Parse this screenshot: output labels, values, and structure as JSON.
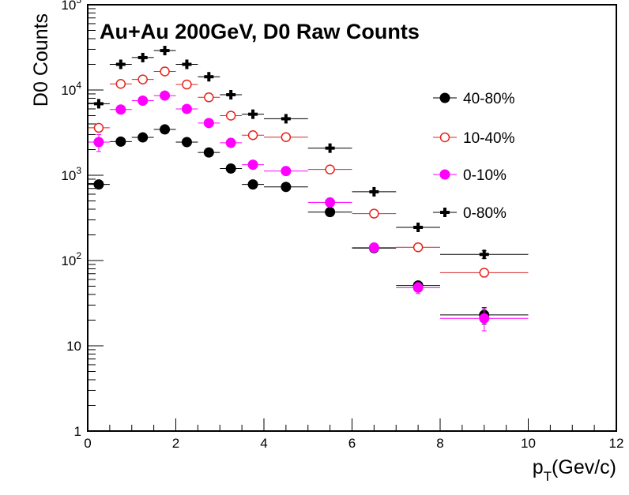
{
  "chart_data": {
    "type": "scatter",
    "title": "Au+Au 200GeV, D0 Raw Counts",
    "xlabel_main": "p",
    "xlabel_sub": "T",
    "xlabel_rest": "(Gev/c)",
    "ylabel": "D0 Counts",
    "xlim": [
      0,
      12
    ],
    "ylim": [
      1,
      100000
    ],
    "y_scale": "log",
    "grid": false,
    "legend_placement": "right",
    "x_ticks": [
      {
        "v": 0,
        "label": "0"
      },
      {
        "v": 2,
        "label": "2"
      },
      {
        "v": 4,
        "label": "4"
      },
      {
        "v": 6,
        "label": "6"
      },
      {
        "v": 8,
        "label": "8"
      },
      {
        "v": 10,
        "label": "10"
      },
      {
        "v": 12,
        "label": "12"
      }
    ],
    "y_ticks": [
      {
        "v": 1,
        "base": "1",
        "exp": ""
      },
      {
        "v": 10,
        "base": "10",
        "exp": ""
      },
      {
        "v": 100,
        "base": "10",
        "exp": "2"
      },
      {
        "v": 1000,
        "base": "10",
        "exp": "3"
      },
      {
        "v": 10000,
        "base": "10",
        "exp": "4"
      },
      {
        "v": 100000,
        "base": "10",
        "exp": "5"
      }
    ],
    "series": [
      {
        "name": "40-80%",
        "marker": "filled-circle",
        "color": "#000000",
        "line_color": "#000000",
        "points": [
          {
            "x": 0.25,
            "xerr": 0.25,
            "y": 780,
            "yerr": 80
          },
          {
            "x": 0.75,
            "xerr": 0.25,
            "y": 2480,
            "yerr": 0
          },
          {
            "x": 1.25,
            "xerr": 0.25,
            "y": 2780,
            "yerr": 0
          },
          {
            "x": 1.75,
            "xerr": 0.25,
            "y": 3450,
            "yerr": 0
          },
          {
            "x": 2.25,
            "xerr": 0.25,
            "y": 2450,
            "yerr": 0
          },
          {
            "x": 2.75,
            "xerr": 0.25,
            "y": 1850,
            "yerr": 0
          },
          {
            "x": 3.25,
            "xerr": 0.25,
            "y": 1200,
            "yerr": 0
          },
          {
            "x": 3.75,
            "xerr": 0.25,
            "y": 780,
            "yerr": 0
          },
          {
            "x": 4.5,
            "xerr": 0.5,
            "y": 730,
            "yerr": 0
          },
          {
            "x": 5.5,
            "xerr": 0.5,
            "y": 370,
            "yerr": 0
          },
          {
            "x": 6.5,
            "xerr": 0.5,
            "y": 140,
            "yerr": 0
          },
          {
            "x": 7.5,
            "xerr": 0.5,
            "y": 51,
            "yerr": 6
          },
          {
            "x": 9.0,
            "xerr": 1.0,
            "y": 23,
            "yerr": 5
          }
        ]
      },
      {
        "name": "10-40%",
        "marker": "open-circle",
        "color": "#e8221a",
        "line_color": "#d42a2a",
        "points": [
          {
            "x": 0.25,
            "xerr": 0.25,
            "y": 3600,
            "yerr": 0
          },
          {
            "x": 0.75,
            "xerr": 0.25,
            "y": 11800,
            "yerr": 0
          },
          {
            "x": 1.25,
            "xerr": 0.25,
            "y": 13300,
            "yerr": 0
          },
          {
            "x": 1.75,
            "xerr": 0.25,
            "y": 16500,
            "yerr": 0
          },
          {
            "x": 2.25,
            "xerr": 0.25,
            "y": 11600,
            "yerr": 0
          },
          {
            "x": 2.75,
            "xerr": 0.25,
            "y": 8200,
            "yerr": 0
          },
          {
            "x": 3.25,
            "xerr": 0.25,
            "y": 5000,
            "yerr": 0
          },
          {
            "x": 3.75,
            "xerr": 0.25,
            "y": 2950,
            "yerr": 0
          },
          {
            "x": 4.5,
            "xerr": 0.5,
            "y": 2800,
            "yerr": 0
          },
          {
            "x": 5.5,
            "xerr": 0.5,
            "y": 1170,
            "yerr": 0
          },
          {
            "x": 6.5,
            "xerr": 0.5,
            "y": 355,
            "yerr": 0
          },
          {
            "x": 7.5,
            "xerr": 0.5,
            "y": 143,
            "yerr": 0
          },
          {
            "x": 9.0,
            "xerr": 1.0,
            "y": 72,
            "yerr": 8
          }
        ]
      },
      {
        "name": "0-10%",
        "marker": "filled-circle",
        "color": "#ff00ff",
        "line_color": "#ff00ff",
        "points": [
          {
            "x": 0.25,
            "xerr": 0.25,
            "y": 2450,
            "yerr": 550
          },
          {
            "x": 0.75,
            "xerr": 0.25,
            "y": 5900,
            "yerr": 0
          },
          {
            "x": 1.25,
            "xerr": 0.25,
            "y": 7500,
            "yerr": 0
          },
          {
            "x": 1.75,
            "xerr": 0.25,
            "y": 8600,
            "yerr": 0
          },
          {
            "x": 2.25,
            "xerr": 0.25,
            "y": 6000,
            "yerr": 0
          },
          {
            "x": 2.75,
            "xerr": 0.25,
            "y": 4100,
            "yerr": 0
          },
          {
            "x": 3.25,
            "xerr": 0.25,
            "y": 2400,
            "yerr": 0
          },
          {
            "x": 3.75,
            "xerr": 0.25,
            "y": 1330,
            "yerr": 0
          },
          {
            "x": 4.5,
            "xerr": 0.5,
            "y": 1120,
            "yerr": 0
          },
          {
            "x": 5.5,
            "xerr": 0.5,
            "y": 480,
            "yerr": 0
          },
          {
            "x": 6.5,
            "xerr": 0.5,
            "y": 142,
            "yerr": 0
          },
          {
            "x": 7.5,
            "xerr": 0.5,
            "y": 48,
            "yerr": 7
          },
          {
            "x": 9.0,
            "xerr": 1.0,
            "y": 21,
            "yerr": 6
          }
        ]
      },
      {
        "name": "0-80%",
        "marker": "cross",
        "color": "#000000",
        "line_color": "#000000",
        "points": [
          {
            "x": 0.25,
            "xerr": 0.25,
            "y": 6900,
            "yerr": 0
          },
          {
            "x": 0.75,
            "xerr": 0.25,
            "y": 20000,
            "yerr": 0
          },
          {
            "x": 1.25,
            "xerr": 0.25,
            "y": 24000,
            "yerr": 0
          },
          {
            "x": 1.75,
            "xerr": 0.25,
            "y": 29000,
            "yerr": 0
          },
          {
            "x": 2.25,
            "xerr": 0.25,
            "y": 20000,
            "yerr": 0
          },
          {
            "x": 2.75,
            "xerr": 0.25,
            "y": 14300,
            "yerr": 0
          },
          {
            "x": 3.25,
            "xerr": 0.25,
            "y": 8800,
            "yerr": 0
          },
          {
            "x": 3.75,
            "xerr": 0.25,
            "y": 5200,
            "yerr": 0
          },
          {
            "x": 4.5,
            "xerr": 0.5,
            "y": 4600,
            "yerr": 0
          },
          {
            "x": 5.5,
            "xerr": 0.5,
            "y": 2080,
            "yerr": 0
          },
          {
            "x": 6.5,
            "xerr": 0.5,
            "y": 640,
            "yerr": 0
          },
          {
            "x": 7.5,
            "xerr": 0.5,
            "y": 245,
            "yerr": 0
          },
          {
            "x": 9.0,
            "xerr": 1.0,
            "y": 118,
            "yerr": 12
          }
        ]
      }
    ]
  }
}
